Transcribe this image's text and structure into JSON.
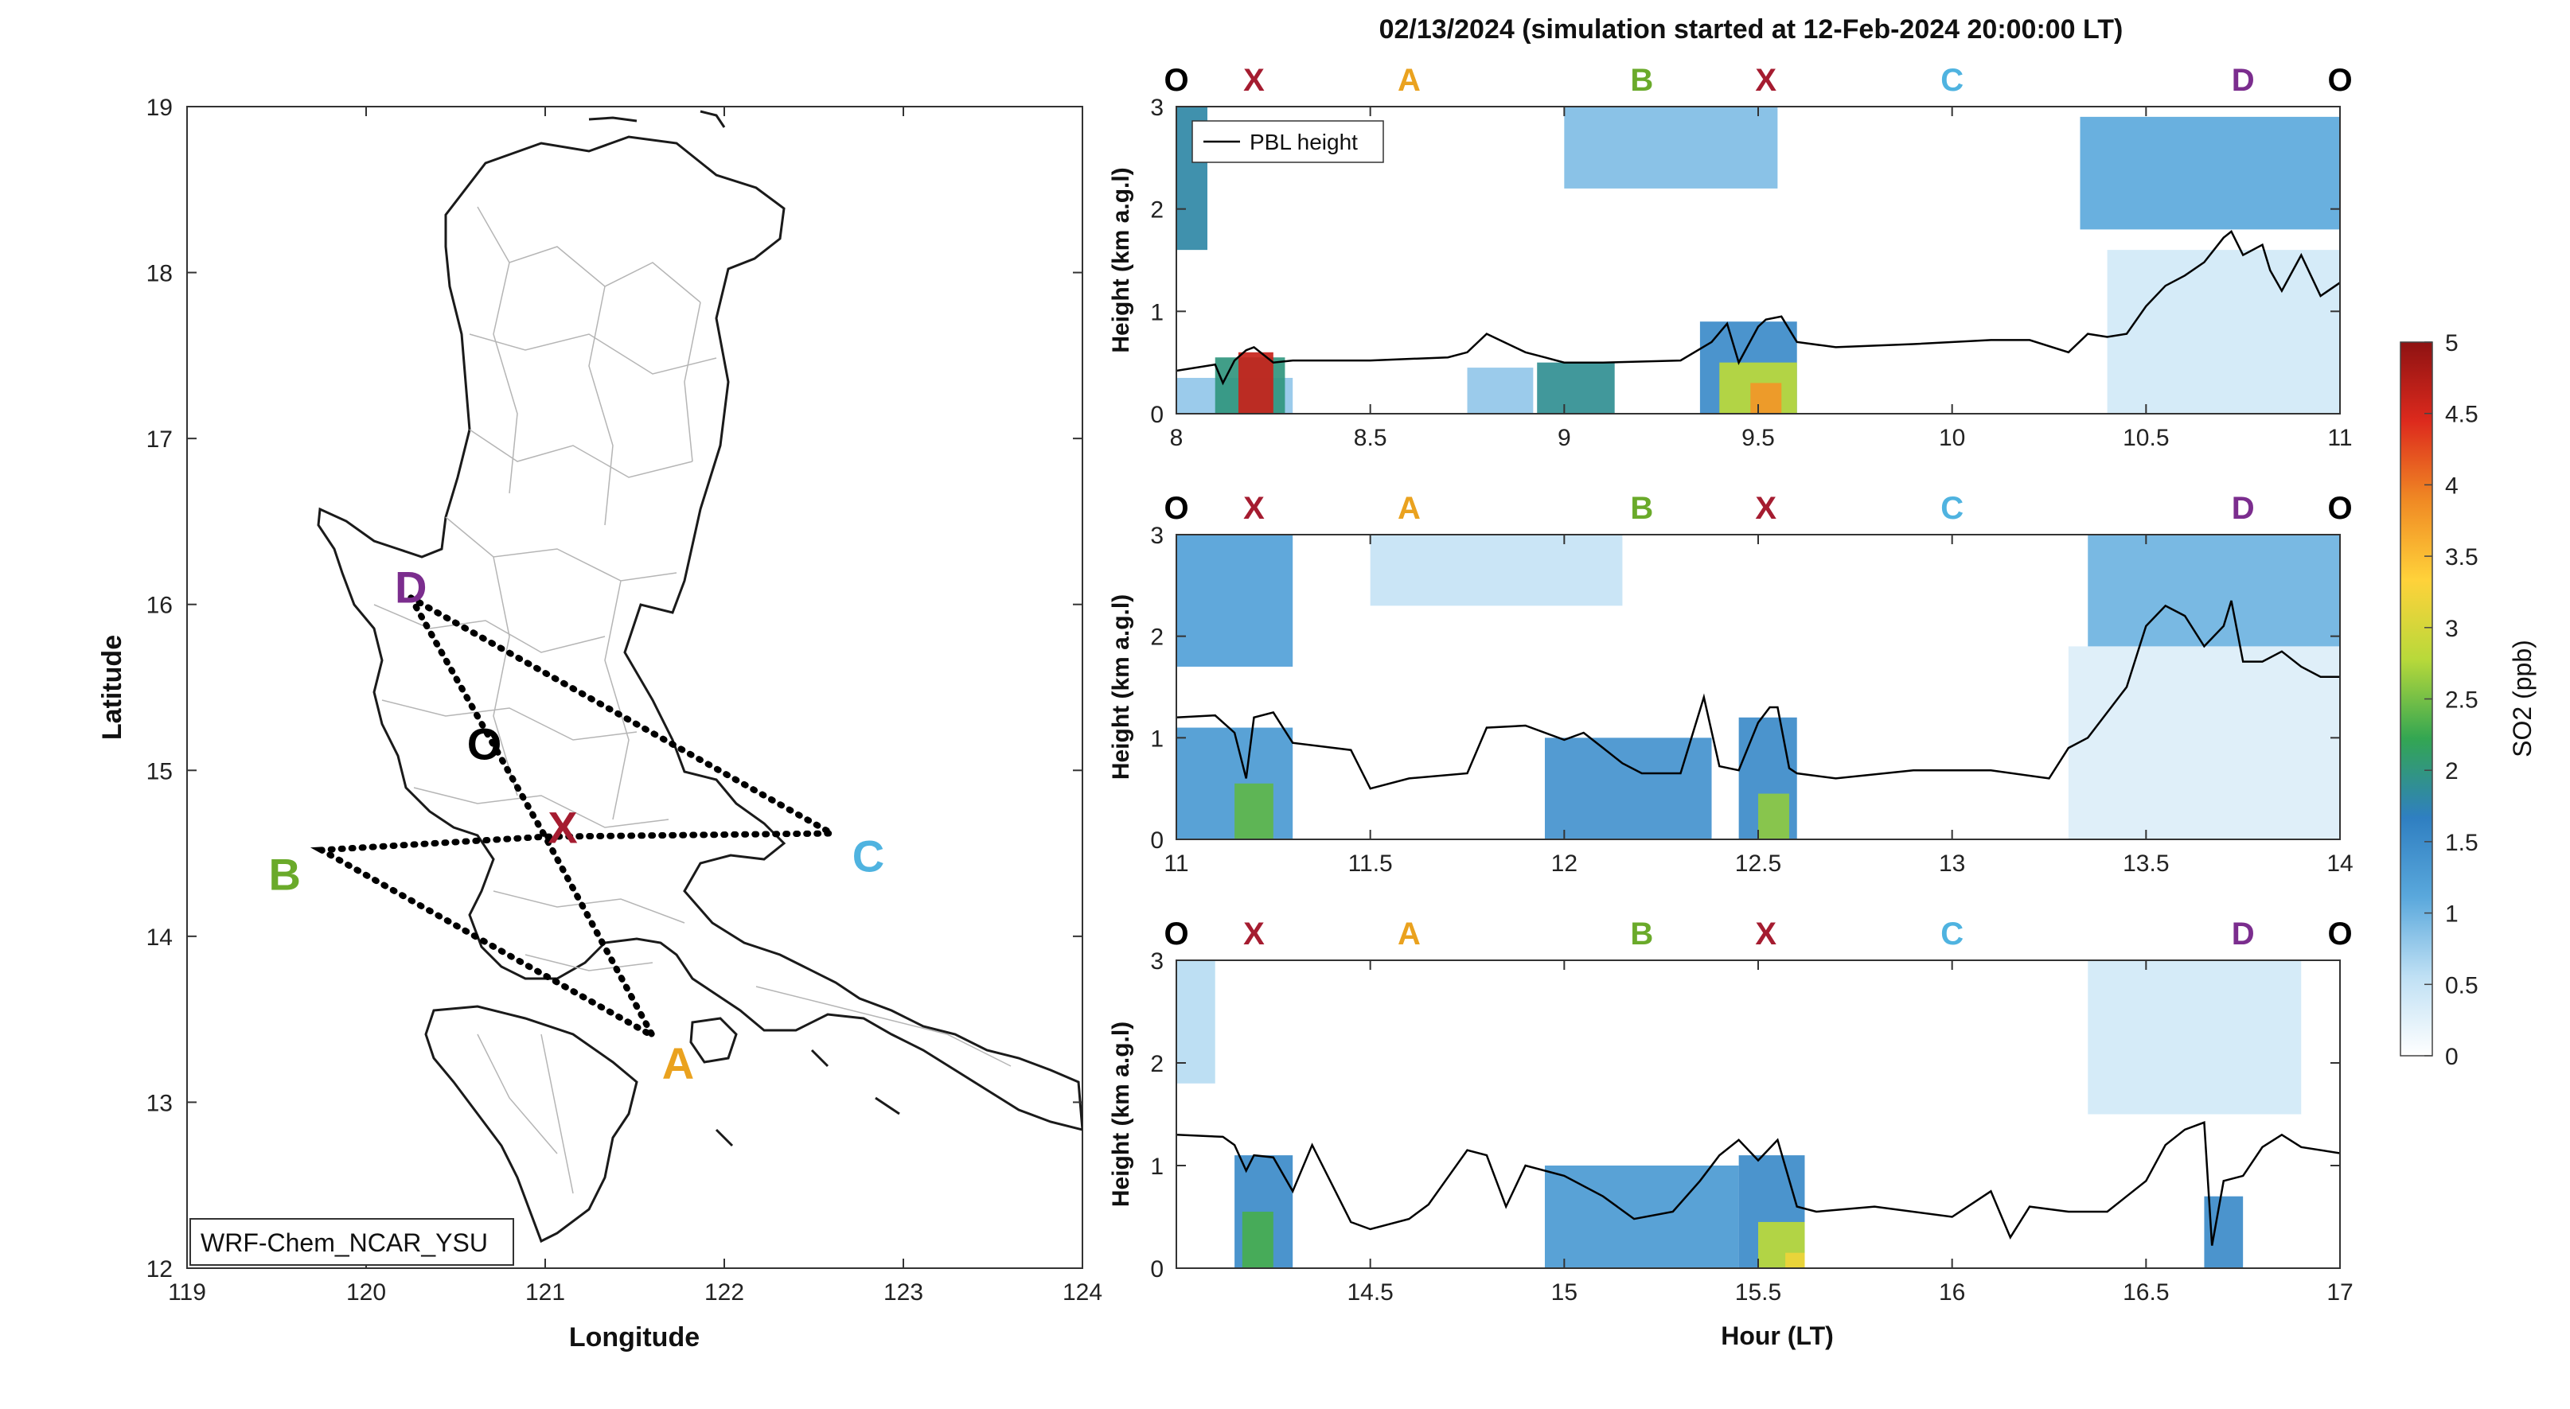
{
  "figure": {
    "title": "02/13/2024 (simulation started at 12-Feb-2024 20:00:00 LT)",
    "model_label": "WRF-Chem_NCAR_YSU"
  },
  "map": {
    "xlabel": "Longitude",
    "ylabel": "Latitude",
    "xlim": [
      119,
      124
    ],
    "ylim": [
      12,
      19
    ],
    "xticks": [
      "119",
      "120",
      "121",
      "122",
      "123",
      "124"
    ],
    "yticks": [
      "12",
      "13",
      "14",
      "15",
      "16",
      "17",
      "18",
      "19"
    ],
    "points": [
      {
        "name": "D",
        "lon": 120.25,
        "lat": 16.04,
        "color": "#7b2d8e"
      },
      {
        "name": "O",
        "lon": 120.66,
        "lat": 15.2,
        "color": "#000000"
      },
      {
        "name": "X",
        "lon": 121.0,
        "lat": 14.6,
        "color": "#a51c30"
      },
      {
        "name": "C",
        "lon": 122.6,
        "lat": 14.62,
        "color": "#4fb3e0"
      },
      {
        "name": "B",
        "lon": 119.75,
        "lat": 14.52,
        "color": "#6aaa2a"
      },
      {
        "name": "A",
        "lon": 121.6,
        "lat": 13.4,
        "color": "#eaa21f"
      }
    ],
    "flight_track": [
      "D",
      "X",
      "A",
      "B",
      "X",
      "C",
      "D"
    ]
  },
  "chart_data": {
    "type": "heatmap",
    "xlabel": "Hour (LT)",
    "ylabel": "Height (km a.g.l)",
    "colorbar": {
      "label": "SO2 (ppb)",
      "range": [
        0,
        5
      ],
      "ticks": [
        "0",
        "0.5",
        "1",
        "1.5",
        "2",
        "2.5",
        "3",
        "3.5",
        "4",
        "4.5",
        "5"
      ],
      "stops": [
        "#ffffff",
        "#bfe0f4",
        "#5aa8dc",
        "#2f7fc1",
        "#33a652",
        "#b8d93a",
        "#ffd23a",
        "#f08a24",
        "#dd2a1d",
        "#8e1212"
      ]
    },
    "legend": {
      "entry": "PBL height",
      "placement": "top-left"
    },
    "waypoint_labels": [
      {
        "name": "O",
        "color": "#000000"
      },
      {
        "name": "X",
        "color": "#a51c30"
      },
      {
        "name": "A",
        "color": "#eaa21f"
      },
      {
        "name": "B",
        "color": "#6aaa2a"
      },
      {
        "name": "X",
        "color": "#a51c30"
      },
      {
        "name": "C",
        "color": "#4fb3e0"
      },
      {
        "name": "D",
        "color": "#7b2d8e"
      },
      {
        "name": "O",
        "color": "#000000"
      }
    ],
    "waypoint_offsets_h": [
      0,
      0.2,
      0.6,
      1.2,
      1.52,
      2.0,
      2.75,
      3.0
    ],
    "panels": [
      {
        "xlim": [
          8,
          11
        ],
        "ylim": [
          0,
          3
        ],
        "xticks": [
          "8",
          "8.5",
          "9",
          "9.5",
          "10",
          "10.5",
          "11"
        ],
        "yticks": [
          "0",
          "1",
          "2",
          "3"
        ],
        "pbl_height": {
          "x": [
            8.0,
            8.1,
            8.12,
            8.15,
            8.18,
            8.2,
            8.25,
            8.3,
            8.5,
            8.7,
            8.75,
            8.8,
            8.9,
            8.95,
            9.0,
            9.1,
            9.3,
            9.38,
            9.42,
            9.45,
            9.5,
            9.52,
            9.56,
            9.6,
            9.7,
            9.9,
            10.1,
            10.2,
            10.3,
            10.35,
            10.4,
            10.45,
            10.5,
            10.55,
            10.6,
            10.65,
            10.7,
            10.72,
            10.75,
            10.8,
            10.82,
            10.85,
            10.9,
            10.95,
            11.0
          ],
          "y": [
            0.42,
            0.48,
            0.3,
            0.52,
            0.62,
            0.65,
            0.5,
            0.52,
            0.52,
            0.55,
            0.6,
            0.78,
            0.6,
            0.55,
            0.5,
            0.5,
            0.52,
            0.7,
            0.88,
            0.5,
            0.85,
            0.92,
            0.95,
            0.7,
            0.65,
            0.68,
            0.72,
            0.72,
            0.6,
            0.78,
            0.75,
            0.78,
            1.05,
            1.25,
            1.35,
            1.48,
            1.72,
            1.78,
            1.55,
            1.65,
            1.4,
            1.2,
            1.55,
            1.15,
            1.28
          ]
        },
        "so2_patches": [
          {
            "x0": 8.0,
            "x1": 8.08,
            "z0": 1.6,
            "z1": 3.0,
            "value": 1.8
          },
          {
            "x0": 8.0,
            "x1": 8.3,
            "z0": 0.0,
            "z1": 0.35,
            "value": 0.8
          },
          {
            "x0": 8.1,
            "x1": 8.28,
            "z0": 0.0,
            "z1": 0.55,
            "value": 2.0
          },
          {
            "x0": 8.16,
            "x1": 8.25,
            "z0": 0.0,
            "z1": 0.6,
            "value": 4.6
          },
          {
            "x0": 8.75,
            "x1": 8.92,
            "z0": 0.0,
            "z1": 0.45,
            "value": 0.8
          },
          {
            "x0": 8.93,
            "x1": 9.13,
            "z0": 0.0,
            "z1": 0.5,
            "value": 1.9
          },
          {
            "x0": 9.35,
            "x1": 9.6,
            "z0": 0.0,
            "z1": 0.9,
            "value": 1.5
          },
          {
            "x0": 9.4,
            "x1": 9.6,
            "z0": 0.0,
            "z1": 0.5,
            "value": 2.8
          },
          {
            "x0": 9.48,
            "x1": 9.56,
            "z0": 0.0,
            "z1": 0.3,
            "value": 3.8
          },
          {
            "x0": 9.0,
            "x1": 9.55,
            "z0": 2.2,
            "z1": 3.0,
            "value": 0.9
          },
          {
            "x0": 10.33,
            "x1": 11.0,
            "z0": 1.8,
            "z1": 2.9,
            "value": 1.1
          },
          {
            "x0": 10.4,
            "x1": 11.0,
            "z0": 0.0,
            "z1": 1.6,
            "value": 0.4
          }
        ]
      },
      {
        "xlim": [
          11,
          14
        ],
        "ylim": [
          0,
          3
        ],
        "xticks": [
          "11",
          "11.5",
          "12",
          "12.5",
          "13",
          "13.5",
          "14"
        ],
        "yticks": [
          "0",
          "1",
          "2",
          "3"
        ],
        "pbl_height": {
          "x": [
            11.0,
            11.1,
            11.15,
            11.18,
            11.2,
            11.25,
            11.3,
            11.45,
            11.5,
            11.6,
            11.75,
            11.8,
            11.9,
            12.0,
            12.05,
            12.1,
            12.15,
            12.2,
            12.3,
            12.36,
            12.4,
            12.45,
            12.5,
            12.53,
            12.55,
            12.58,
            12.6,
            12.7,
            12.9,
            13.1,
            13.25,
            13.3,
            13.35,
            13.4,
            13.45,
            13.5,
            13.55,
            13.6,
            13.65,
            13.7,
            13.72,
            13.75,
            13.8,
            13.85,
            13.9,
            13.95,
            14.0
          ],
          "y": [
            1.2,
            1.22,
            1.05,
            0.6,
            1.2,
            1.25,
            0.95,
            0.88,
            0.5,
            0.6,
            0.65,
            1.1,
            1.12,
            0.98,
            1.05,
            0.9,
            0.75,
            0.65,
            0.65,
            1.4,
            0.72,
            0.68,
            1.15,
            1.3,
            1.3,
            0.7,
            0.65,
            0.6,
            0.68,
            0.68,
            0.6,
            0.9,
            1.0,
            1.25,
            1.5,
            2.1,
            2.3,
            2.2,
            1.9,
            2.1,
            2.35,
            1.75,
            1.75,
            1.85,
            1.7,
            1.6,
            1.6
          ]
        },
        "so2_patches": [
          {
            "x0": 11.0,
            "x1": 11.3,
            "z0": 1.7,
            "z1": 3.0,
            "value": 1.2
          },
          {
            "x0": 11.0,
            "x1": 11.3,
            "z0": 0.0,
            "z1": 1.1,
            "value": 1.3
          },
          {
            "x0": 11.15,
            "x1": 11.25,
            "z0": 0.0,
            "z1": 0.55,
            "value": 2.4
          },
          {
            "x0": 11.5,
            "x1": 12.15,
            "z0": 2.3,
            "z1": 3.0,
            "value": 0.5
          },
          {
            "x0": 11.95,
            "x1": 12.38,
            "z0": 0.0,
            "z1": 1.0,
            "value": 1.4
          },
          {
            "x0": 12.45,
            "x1": 12.6,
            "z0": 0.0,
            "z1": 1.2,
            "value": 1.5
          },
          {
            "x0": 12.5,
            "x1": 12.58,
            "z0": 0.0,
            "z1": 0.45,
            "value": 2.6
          },
          {
            "x0": 13.35,
            "x1": 14.0,
            "z0": 1.9,
            "z1": 3.0,
            "value": 1.0
          },
          {
            "x0": 13.3,
            "x1": 14.0,
            "z0": 0.0,
            "z1": 1.9,
            "value": 0.3
          }
        ]
      },
      {
        "xlim": [
          14,
          17
        ],
        "ylim": [
          0,
          3
        ],
        "xticks": [
          "14.5",
          "15",
          "15.5",
          "16",
          "16.5",
          "17"
        ],
        "yticks": [
          "0",
          "1",
          "2",
          "3"
        ],
        "pbl_height": {
          "x": [
            14.0,
            14.12,
            14.15,
            14.18,
            14.2,
            14.25,
            14.3,
            14.35,
            14.45,
            14.5,
            14.6,
            14.65,
            14.75,
            14.8,
            14.85,
            14.9,
            15.0,
            15.1,
            15.18,
            15.28,
            15.35,
            15.4,
            15.45,
            15.5,
            15.55,
            15.6,
            15.65,
            15.8,
            16.0,
            16.1,
            16.15,
            16.2,
            16.3,
            16.4,
            16.5,
            16.55,
            16.6,
            16.65,
            16.67,
            16.7,
            16.75,
            16.8,
            16.85,
            16.9,
            17.0
          ],
          "y": [
            1.3,
            1.28,
            1.2,
            0.95,
            1.1,
            1.08,
            0.75,
            1.2,
            0.45,
            0.38,
            0.48,
            0.62,
            1.15,
            1.1,
            0.6,
            1.0,
            0.9,
            0.7,
            0.48,
            0.55,
            0.85,
            1.1,
            1.25,
            1.05,
            1.25,
            0.6,
            0.55,
            0.6,
            0.5,
            0.75,
            0.3,
            0.6,
            0.55,
            0.55,
            0.85,
            1.2,
            1.35,
            1.42,
            0.22,
            0.85,
            0.9,
            1.18,
            1.3,
            1.18,
            1.12
          ]
        },
        "so2_patches": [
          {
            "x0": 14.0,
            "x1": 14.1,
            "z0": 1.8,
            "z1": 3.0,
            "value": 0.6
          },
          {
            "x0": 14.15,
            "x1": 14.3,
            "z0": 0.0,
            "z1": 1.1,
            "value": 1.5
          },
          {
            "x0": 14.17,
            "x1": 14.25,
            "z0": 0.0,
            "z1": 0.55,
            "value": 2.3
          },
          {
            "x0": 14.95,
            "x1": 15.45,
            "z0": 0.0,
            "z1": 1.0,
            "value": 1.3
          },
          {
            "x0": 15.45,
            "x1": 15.62,
            "z0": 0.0,
            "z1": 1.1,
            "value": 1.5
          },
          {
            "x0": 15.5,
            "x1": 15.62,
            "z0": 0.0,
            "z1": 0.45,
            "value": 2.8
          },
          {
            "x0": 15.57,
            "x1": 15.62,
            "z0": 0.0,
            "z1": 0.15,
            "value": 3.2
          },
          {
            "x0": 16.35,
            "x1": 16.9,
            "z0": 1.5,
            "z1": 3.0,
            "value": 0.4
          },
          {
            "x0": 16.65,
            "x1": 16.75,
            "z0": 0.0,
            "z1": 0.7,
            "value": 1.5
          }
        ]
      }
    ]
  }
}
